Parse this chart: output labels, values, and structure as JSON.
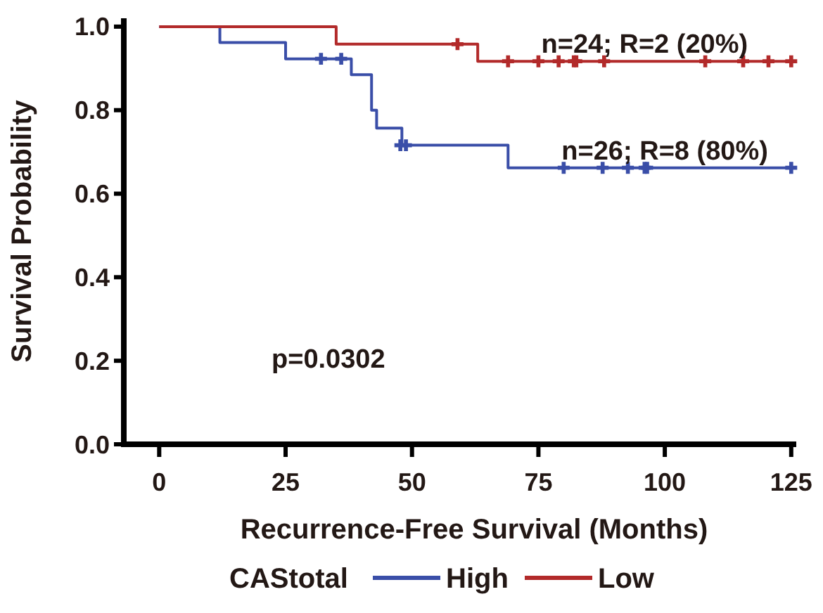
{
  "chart_data": {
    "type": "step",
    "xlabel": "Recurrence-Free Survival (Months)",
    "ylabel": "Survival Probability",
    "legend_title": "CAStotal",
    "legend": "bottom",
    "xlim": [
      -7,
      126
    ],
    "ylim": [
      0,
      1.02
    ],
    "xticks": [
      0,
      25,
      50,
      75,
      100,
      125
    ],
    "yticks": [
      {
        "value": 0,
        "label": "0.0"
      },
      {
        "value": 0.2,
        "label": "0.2"
      },
      {
        "value": 0.4,
        "label": "0.4"
      },
      {
        "value": 0.6,
        "label": "0.6"
      },
      {
        "value": 0.8,
        "label": "0.8"
      },
      {
        "value": 1,
        "label": "1.0"
      }
    ],
    "grid": false,
    "series": [
      {
        "name": "High",
        "color": "#3a4ea8",
        "x": [
          0,
          12,
          25,
          38,
          42,
          43,
          48,
          69,
          125
        ],
        "values": [
          1,
          0.962,
          0.923,
          0.885,
          0.8,
          0.757,
          0.716,
          0.662,
          0.662
        ]
      },
      {
        "name": "Low",
        "color": "#b22a2a",
        "x": [
          0,
          35,
          63,
          125
        ],
        "values": [
          1,
          0.958,
          0.917,
          0.917
        ]
      },
      {
        "type": "scatter",
        "marker": "cross",
        "color": "#3a4ea8",
        "x": [
          32,
          36,
          47.7,
          48.8,
          80,
          87.7,
          92.7,
          96,
          96.5,
          125
        ],
        "values": [
          0.923,
          0.923,
          0.716,
          0.716,
          0.662,
          0.662,
          0.662,
          0.662,
          0.662,
          0.662
        ]
      },
      {
        "type": "scatter",
        "marker": "cross",
        "color": "#b22a2a",
        "x": [
          59,
          69,
          75,
          79,
          82,
          82.5,
          88,
          108,
          115.5,
          120.5,
          125
        ],
        "values": [
          0.958,
          0.917,
          0.917,
          0.917,
          0.917,
          0.917,
          0.917,
          0.917,
          0.917,
          0.917,
          0.917
        ]
      }
    ],
    "annotations": [
      {
        "text": "n=24; R=2 (20%)",
        "x": 96,
        "y": 0.917
      },
      {
        "text": "n=26; R=8 (80%)",
        "x": 100,
        "y": 0.662
      },
      "p=0.0302"
    ]
  }
}
